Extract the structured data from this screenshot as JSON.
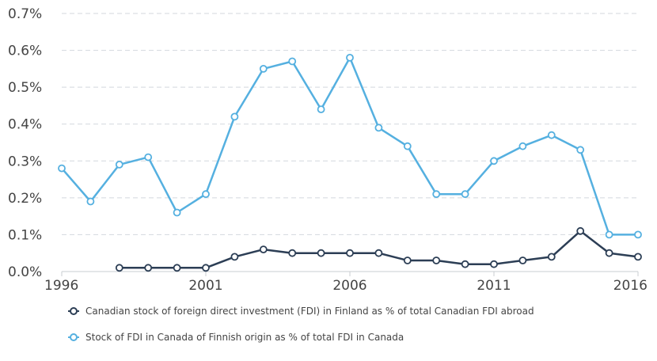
{
  "chart_data": {
    "type": "line",
    "title": "",
    "xlabel": "",
    "ylabel": "",
    "x": [
      1996,
      1997,
      1998,
      1999,
      2000,
      2001,
      2002,
      2003,
      2004,
      2005,
      2006,
      2007,
      2008,
      2009,
      2010,
      2011,
      2012,
      2013,
      2014,
      2015,
      2016
    ],
    "xlim": [
      1996,
      2016
    ],
    "ylim": [
      0,
      0.7
    ],
    "x_ticks": [
      1996,
      2001,
      2006,
      2011,
      2016
    ],
    "x_tick_labels": [
      "1996",
      "2001",
      "2006",
      "2011",
      "2016"
    ],
    "y_ticks": [
      0,
      0.1,
      0.2,
      0.3,
      0.4,
      0.5,
      0.6,
      0.7
    ],
    "y_tick_labels": [
      "0.0%",
      "0.1%",
      "0.2%",
      "0.3%",
      "0.4%",
      "0.5%",
      "0.6%",
      "0.7%"
    ],
    "grid": true,
    "legend_position": "bottom",
    "series": [
      {
        "name": "Canadian stock of foreign direct investment (FDI) in Finland as % of total Canadian FDI abroad",
        "color": "#2c3e55",
        "values": [
          null,
          null,
          0.01,
          0.01,
          0.01,
          0.01,
          0.04,
          0.06,
          0.05,
          0.05,
          0.05,
          0.05,
          0.03,
          0.03,
          0.02,
          0.02,
          0.03,
          0.04,
          0.11,
          0.05,
          0.04
        ]
      },
      {
        "name": "Stock of FDI in Canada of Finnish origin as % of total FDI in Canada",
        "color": "#55b0e0",
        "values": [
          0.28,
          0.19,
          0.29,
          0.31,
          0.16,
          0.21,
          0.42,
          0.55,
          0.57,
          0.44,
          0.58,
          0.39,
          0.34,
          0.21,
          0.21,
          0.3,
          0.34,
          0.37,
          0.33,
          0.1,
          0.1
        ]
      }
    ]
  }
}
